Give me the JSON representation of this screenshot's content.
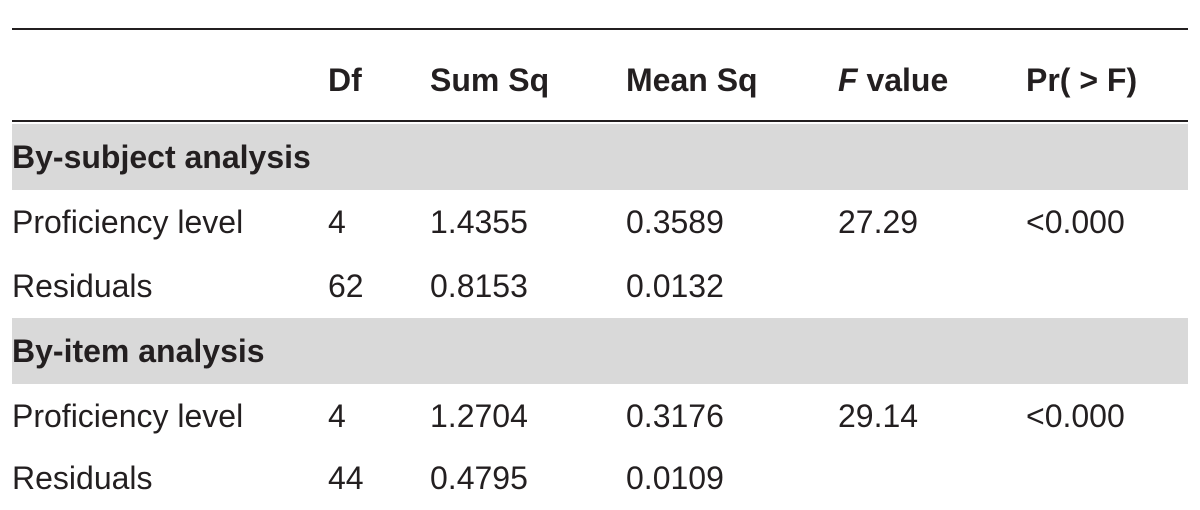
{
  "header": {
    "col0": "",
    "df": "Df",
    "sum_sq": "Sum Sq",
    "mean_sq": "Mean Sq",
    "f_value_italic": "F",
    "f_value_rest": " value",
    "pr": "Pr( > F)"
  },
  "sections": [
    {
      "title": "By-subject analysis",
      "rows": [
        {
          "label": "Proficiency level",
          "df": "4",
          "sum_sq": "1.4355",
          "mean_sq": "0.3589",
          "f_value": "27.29",
          "pr": "<0.000"
        },
        {
          "label": "Residuals",
          "df": "62",
          "sum_sq": "0.8153",
          "mean_sq": "0.0132",
          "f_value": "",
          "pr": ""
        }
      ]
    },
    {
      "title": "By-item analysis",
      "rows": [
        {
          "label": "Proficiency level",
          "df": "4",
          "sum_sq": "1.2704",
          "mean_sq": "0.3176",
          "f_value": "29.14",
          "pr": "<0.000"
        },
        {
          "label": "Residuals",
          "df": "44",
          "sum_sq": "0.4795",
          "mean_sq": "0.0109",
          "f_value": "",
          "pr": ""
        }
      ]
    }
  ],
  "colors": {
    "text": "#231f20",
    "section_bg": "#d9d9d9",
    "rule": "#231f20"
  }
}
